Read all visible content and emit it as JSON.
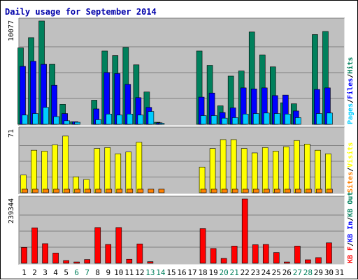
{
  "chart_data": {
    "type": "bar",
    "title": "Daily usage for September 2014",
    "categories": [
      "1",
      "2",
      "3",
      "4",
      "5",
      "6",
      "7",
      "8",
      "9",
      "10",
      "11",
      "12",
      "13",
      "14",
      "15",
      "16",
      "17",
      "18",
      "19",
      "20",
      "21",
      "22",
      "23",
      "24",
      "25",
      "26",
      "27",
      "28",
      "29",
      "30",
      "31"
    ],
    "weekend_days": [
      "6",
      "7",
      "13",
      "14",
      "20",
      "21",
      "27",
      "28"
    ],
    "panels": [
      {
        "axis_max_label": "10077",
        "ylim": [
          0,
          10077
        ],
        "legend": [
          {
            "label": "Pages",
            "color": "#00ccff"
          },
          {
            "label": "Files",
            "color": "#0000ff"
          },
          {
            "label": "Hits",
            "color": "#00805c"
          }
        ],
        "series": [
          {
            "name": "Hits",
            "color": "#00805c",
            "values": [
              7450,
              8450,
              10077,
              5850,
              1950,
              250,
              0,
              2350,
              7150,
              6700,
              7500,
              5800,
              3150,
              200,
              0,
              0,
              0,
              7150,
              5750,
              1800,
              4700,
              5200,
              9000,
              6750,
              5600,
              2100,
              2000,
              0,
              8750,
              9050,
              0
            ]
          },
          {
            "name": "Files",
            "color": "#0000ff",
            "values": [
              5650,
              6150,
              5850,
              3800,
              1050,
              250,
              0,
              1500,
              5050,
              4950,
              3900,
              2600,
              1650,
              150,
              0,
              0,
              0,
              2650,
              3050,
              1150,
              1600,
              3550,
              3450,
              3550,
              2800,
              2850,
              1300,
              0,
              3400,
              3550,
              0
            ]
          },
          {
            "name": "Pages",
            "color": "#00ccff",
            "values": [
              900,
              1050,
              1650,
              750,
              350,
              200,
              0,
              450,
              1000,
              900,
              1000,
              900,
              1250,
              100,
              0,
              0,
              0,
              850,
              850,
              600,
              650,
              1000,
              1050,
              1100,
              1050,
              1000,
              650,
              0,
              1050,
              1100,
              0
            ]
          }
        ]
      },
      {
        "axis_max_label": "71",
        "ylim": [
          0,
          71
        ],
        "legend": [
          {
            "label": "Sites",
            "color": "#ff8000"
          },
          {
            "label": "Visits",
            "color": "#ffff00"
          }
        ],
        "series": [
          {
            "name": "Visits",
            "color": "#ffff00",
            "values": [
              20,
              48,
              47,
              54,
              64,
              18,
              15,
              50,
              51,
              44,
              46,
              57,
              0,
              0,
              0,
              0,
              0,
              29,
              50,
              60,
              60,
              50,
              45,
              51,
              47,
              52,
              59,
              55,
              48,
              44,
              0
            ]
          },
          {
            "name": "Sites",
            "color": "#ff8000",
            "values": [
              4,
              4,
              4,
              4,
              4,
              4,
              4,
              4,
              4,
              4,
              4,
              4,
              4,
              4,
              0,
              0,
              0,
              4,
              4,
              4,
              4,
              4,
              4,
              4,
              4,
              4,
              4,
              4,
              4,
              4,
              0
            ]
          }
        ]
      },
      {
        "axis_max_label": "239344",
        "ylim": [
          0,
          239344
        ],
        "legend": [
          {
            "label": "KB F",
            "color": "#ff0000"
          },
          {
            "label": "KB In",
            "color": "#0000ff"
          },
          {
            "label": "KB Out",
            "color": "#00805c"
          }
        ],
        "series": [
          {
            "name": "KB F",
            "color": "#ff0000",
            "values": [
              59000,
              132000,
              73000,
              38000,
              10000,
              5000,
              14000,
              133000,
              70000,
              133000,
              15000,
              72000,
              6000,
              0,
              0,
              0,
              0,
              129000,
              55000,
              18000,
              64000,
              239344,
              69000,
              70000,
              40000,
              5000,
              64000,
              13000,
              21000,
              76000,
              0
            ]
          }
        ]
      }
    ]
  }
}
